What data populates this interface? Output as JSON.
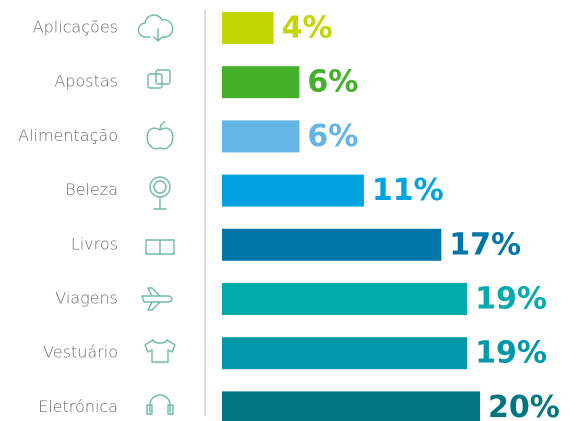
{
  "chart_data": {
    "type": "bar",
    "categories": [
      "Aplicações",
      "Apostas",
      "Alimentação",
      "Beleza",
      "Livros",
      "Viagens",
      "Vestuário",
      "Eletrónica"
    ],
    "values": [
      4,
      6,
      6,
      11,
      17,
      19,
      19,
      20
    ],
    "value_labels": [
      "4%",
      "6%",
      "6%",
      "11%",
      "17%",
      "19%",
      "19%",
      "20%"
    ],
    "colors": [
      "#c4d600",
      "#43b02a",
      "#62b5e5",
      "#00a3e0",
      "#0076a8",
      "#00abab",
      "#0097a9",
      "#007680"
    ]
  }
}
